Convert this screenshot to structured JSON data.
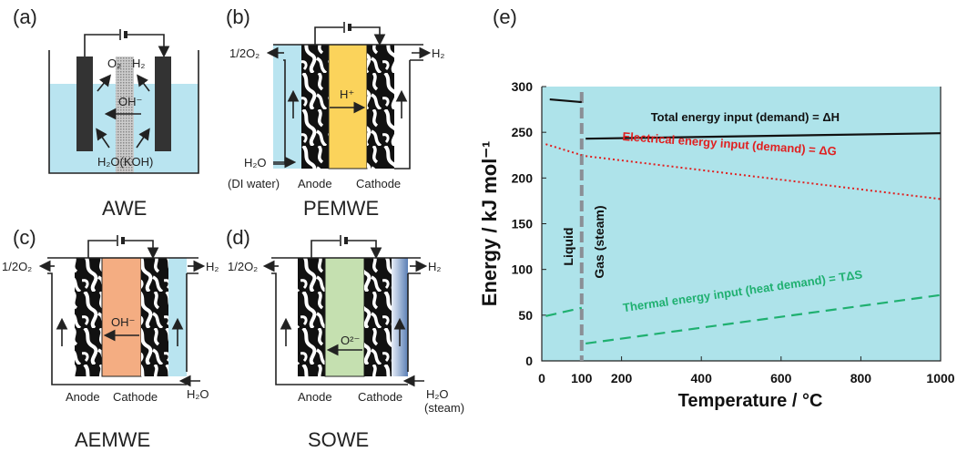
{
  "panels": {
    "a": {
      "label": "(a)",
      "title": "AWE",
      "o2": "O₂",
      "h2": "H₂",
      "ion": "OH⁻",
      "feed": "H₂O(KOH)"
    },
    "b": {
      "label": "(b)",
      "title": "PEMWE",
      "o2": "1/2O₂",
      "h2": "H₂",
      "ion": "H⁺",
      "feed": "H₂O",
      "feed_note": "(DI water)",
      "anode": "Anode",
      "cathode": "Cathode",
      "membrane_color": "#fbd35b"
    },
    "c": {
      "label": "(c)",
      "title": "AEMWE",
      "o2": "1/2O₂",
      "h2": "H₂",
      "ion": "OH⁻",
      "feed": "H₂O",
      "anode": "Anode",
      "cathode": "Cathode",
      "membrane_color": "#f4ad82"
    },
    "d": {
      "label": "(d)",
      "title": "SOWE",
      "o2": "1/2O₂",
      "h2": "H₂",
      "ion": "O²⁻",
      "feed": "H₂O",
      "feed_note": "(steam)",
      "anode": "Anode",
      "cathode": "Cathode",
      "membrane_color": "#c5e0b0"
    },
    "e": {
      "label": "(e)"
    }
  },
  "chart_data": {
    "type": "line",
    "xlabel": "Temperature / °C",
    "ylabel": "Energy / kJ mol⁻¹",
    "xlim": [
      0,
      1000
    ],
    "ylim": [
      0,
      300
    ],
    "xticks": [
      0,
      100,
      200,
      400,
      600,
      800,
      1000
    ],
    "yticks": [
      0,
      50,
      100,
      150,
      200,
      250,
      300
    ],
    "phase_boundary": 100,
    "phase_labels": {
      "liquid": "Liquid",
      "gas": "Gas (steam)"
    },
    "series": [
      {
        "name": "Total energy input (demand) = ΔH",
        "color": "#111111",
        "style": "solid",
        "segments": [
          [
            [
              20,
              286
            ],
            [
              100,
              283
            ]
          ],
          [
            [
              110,
              243
            ],
            [
              1000,
              249
            ]
          ]
        ]
      },
      {
        "name": "Electrical energy input (demand) = ΔG",
        "color": "#e02020",
        "style": "dotted",
        "segments": [
          [
            [
              10,
              237
            ],
            [
              100,
              225
            ]
          ],
          [
            [
              110,
              224
            ],
            [
              1000,
              177
            ]
          ]
        ]
      },
      {
        "name": "Thermal energy input (heat demand) = TΔS",
        "color": "#1fb070",
        "style": "dashed",
        "segments": [
          [
            [
              10,
              49
            ],
            [
              100,
              58
            ]
          ],
          [
            [
              110,
              19
            ],
            [
              1000,
              72
            ]
          ]
        ]
      }
    ],
    "background_color": "#aee3ea",
    "grid": false
  }
}
